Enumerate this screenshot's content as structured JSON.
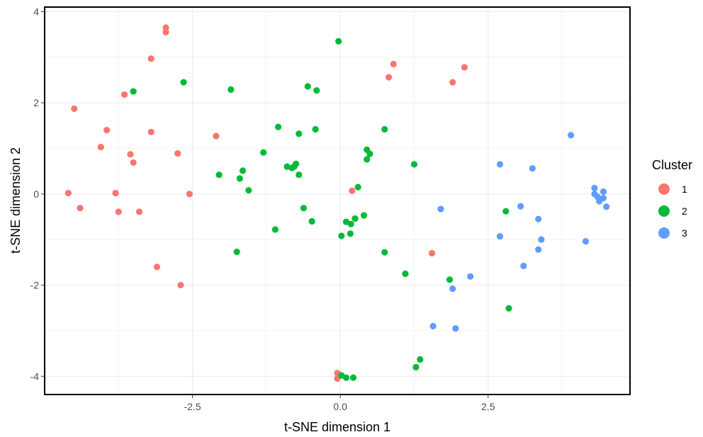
{
  "chart_data": {
    "type": "scatter",
    "xlabel": "t-SNE dimension 1",
    "ylabel": "t-SNE dimension 2",
    "xlim": [
      -5.0,
      4.9
    ],
    "ylim": [
      -4.4,
      4.1
    ],
    "x_ticks": [
      -2.5,
      0.0,
      2.5
    ],
    "x_tick_labels": [
      "-2.5",
      "0.0",
      "2.5"
    ],
    "y_ticks": [
      -4,
      -2,
      0,
      2,
      4
    ],
    "y_tick_labels": [
      "-4",
      "-2",
      "0",
      "2",
      "4"
    ],
    "grid": true,
    "legend": {
      "title": "Cluster",
      "position": "right"
    },
    "series": [
      {
        "name": "1",
        "color": "#F8766D",
        "points": [
          [
            -2.95,
            3.65
          ],
          [
            -2.95,
            3.55
          ],
          [
            -3.2,
            2.97
          ],
          [
            -3.65,
            2.18
          ],
          [
            -4.5,
            1.87
          ],
          [
            -3.95,
            1.4
          ],
          [
            -3.2,
            1.36
          ],
          [
            -2.1,
            1.27
          ],
          [
            -4.05,
            1.03
          ],
          [
            -3.55,
            0.87
          ],
          [
            -2.75,
            0.89
          ],
          [
            -3.5,
            0.69
          ],
          [
            -4.6,
            0.02
          ],
          [
            -3.8,
            0.02
          ],
          [
            -2.55,
            0.0
          ],
          [
            -4.4,
            -0.31
          ],
          [
            -3.75,
            -0.39
          ],
          [
            -3.4,
            -0.39
          ],
          [
            -3.1,
            -1.6
          ],
          [
            -2.7,
            -2.0
          ],
          [
            0.2,
            0.07
          ],
          [
            -0.05,
            -3.93
          ],
          [
            -0.05,
            -4.05
          ],
          [
            0.9,
            2.85
          ],
          [
            0.82,
            2.56
          ],
          [
            1.9,
            2.45
          ],
          [
            2.1,
            2.78
          ],
          [
            1.55,
            -1.3
          ]
        ]
      },
      {
        "name": "2",
        "color": "#00BA38",
        "points": [
          [
            -0.03,
            3.35
          ],
          [
            -3.5,
            2.25
          ],
          [
            -2.65,
            2.45
          ],
          [
            -1.85,
            2.29
          ],
          [
            -0.55,
            2.36
          ],
          [
            -0.4,
            2.27
          ],
          [
            -1.05,
            1.47
          ],
          [
            -0.7,
            1.32
          ],
          [
            -0.42,
            1.42
          ],
          [
            0.75,
            1.42
          ],
          [
            -1.3,
            0.91
          ],
          [
            0.45,
            0.97
          ],
          [
            0.5,
            0.88
          ],
          [
            0.45,
            0.76
          ],
          [
            -0.75,
            0.66
          ],
          [
            -0.78,
            0.6
          ],
          [
            -0.9,
            0.6
          ],
          [
            -0.82,
            0.57
          ],
          [
            -1.65,
            0.51
          ],
          [
            -2.05,
            0.42
          ],
          [
            -0.7,
            0.42
          ],
          [
            -1.7,
            0.34
          ],
          [
            -1.55,
            0.08
          ],
          [
            0.3,
            0.15
          ],
          [
            1.25,
            0.65
          ],
          [
            -0.62,
            -0.31
          ],
          [
            0.4,
            -0.47
          ],
          [
            0.25,
            -0.54
          ],
          [
            0.1,
            -0.61
          ],
          [
            0.18,
            -0.66
          ],
          [
            -0.48,
            -0.6
          ],
          [
            -1.1,
            -0.78
          ],
          [
            0.17,
            -0.87
          ],
          [
            0.02,
            -0.92
          ],
          [
            -1.75,
            -1.27
          ],
          [
            0.75,
            -1.28
          ],
          [
            1.1,
            -1.75
          ],
          [
            1.85,
            -1.88
          ],
          [
            2.8,
            -0.38
          ],
          [
            2.85,
            -2.51
          ],
          [
            1.35,
            -3.63
          ],
          [
            1.28,
            -3.8
          ],
          [
            0.02,
            -3.98
          ],
          [
            0.1,
            -4.03
          ],
          [
            0.22,
            -4.03
          ]
        ]
      },
      {
        "name": "3",
        "color": "#619CFF",
        "points": [
          [
            3.9,
            1.29
          ],
          [
            2.7,
            0.65
          ],
          [
            3.25,
            0.56
          ],
          [
            4.3,
            0.13
          ],
          [
            4.3,
            0.0
          ],
          [
            4.45,
            0.05
          ],
          [
            4.35,
            -0.06
          ],
          [
            4.45,
            -0.09
          ],
          [
            4.38,
            -0.16
          ],
          [
            4.5,
            -0.28
          ],
          [
            3.05,
            -0.27
          ],
          [
            1.7,
            -0.33
          ],
          [
            3.35,
            -0.55
          ],
          [
            2.7,
            -0.93
          ],
          [
            3.4,
            -1.0
          ],
          [
            4.15,
            -1.04
          ],
          [
            3.35,
            -1.22
          ],
          [
            3.1,
            -1.58
          ],
          [
            2.2,
            -1.81
          ],
          [
            1.9,
            -2.08
          ],
          [
            1.57,
            -2.9
          ],
          [
            1.95,
            -2.95
          ]
        ]
      }
    ]
  }
}
